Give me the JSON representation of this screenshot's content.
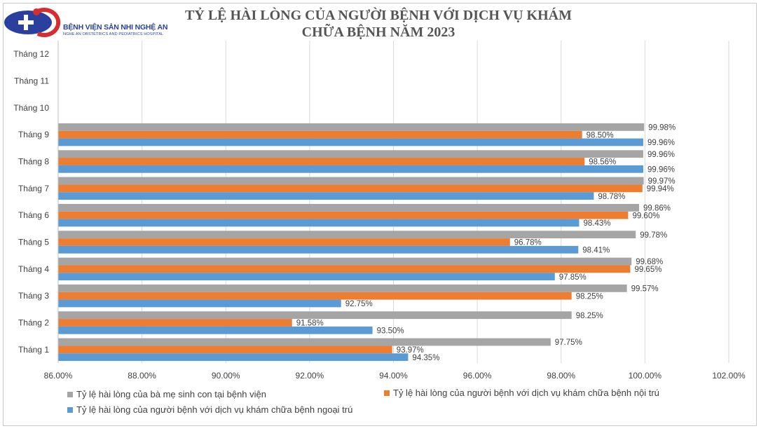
{
  "logo": {
    "name": "BỆNH VIỆN SẢN NHI NGHỆ AN",
    "subname": "NGHE AN OBSTETRICS AND PEDIATRICS HOSPITAL"
  },
  "chart_data": {
    "type": "bar",
    "orientation": "horizontal",
    "title": [
      "TỶ LỆ HÀI LÒNG CỦA NGƯỜI BỆNH VỚI DỊCH VỤ KHÁM",
      "CHỮA BỆNH NĂM 2023"
    ],
    "categories": [
      "Tháng 1",
      "Tháng 2",
      "Tháng 3",
      "Tháng 4",
      "Tháng 5",
      "Tháng 6",
      "Tháng 7",
      "Tháng 8",
      "Tháng 9",
      "Tháng 10",
      "Tháng 11",
      "Tháng 12"
    ],
    "xlim": [
      86,
      102
    ],
    "xticks": [
      86,
      88,
      90,
      92,
      94,
      96,
      98,
      100,
      102
    ],
    "tick_labels": [
      "86.00%",
      "88.00%",
      "90.00%",
      "92.00%",
      "94.00%",
      "96.00%",
      "98.00%",
      "100.00%",
      "102.00%"
    ],
    "grid": "vertical",
    "legend_position": "bottom",
    "series": [
      {
        "name": "Tỷ lệ hài lòng của bà mẹ sinh con tại bệnh viện",
        "color": "#a5a5a5",
        "values": [
          97.75,
          98.25,
          99.57,
          99.68,
          99.78,
          99.86,
          99.97,
          99.96,
          99.98,
          null,
          null,
          null
        ],
        "labels": [
          "97.75%",
          "98.25%",
          "99.57%",
          "99.68%",
          "99.78%",
          "99.86%",
          "99.97%",
          "99.96%",
          "99.98%",
          "",
          "",
          ""
        ]
      },
      {
        "name": "Tỷ lệ hài lòng của người bệnh với dịch vụ khám chữa bệnh nội trú",
        "color": "#ed7d31",
        "values": [
          93.97,
          91.58,
          98.25,
          99.65,
          96.78,
          99.6,
          99.94,
          98.56,
          98.5,
          null,
          null,
          null
        ],
        "labels": [
          "93.97%",
          "91.58%",
          "98.25%",
          "99.65%",
          "96.78%",
          "99.60%",
          "99.94%",
          "98.56%",
          "98.50%",
          "",
          "",
          ""
        ]
      },
      {
        "name": "Tỷ lệ hài lòng của người bệnh với dịch vụ khám chữa bệnh ngoại trú",
        "color": "#5b9bd5",
        "values": [
          94.35,
          93.5,
          92.75,
          97.85,
          98.41,
          98.43,
          98.78,
          99.96,
          99.96,
          null,
          null,
          null
        ],
        "labels": [
          "94.35%",
          "93.50%",
          "92.75%",
          "97.85%",
          "98.41%",
          "98.43%",
          "98.78%",
          "99.96%",
          "99.96%",
          "",
          "",
          ""
        ]
      }
    ]
  }
}
